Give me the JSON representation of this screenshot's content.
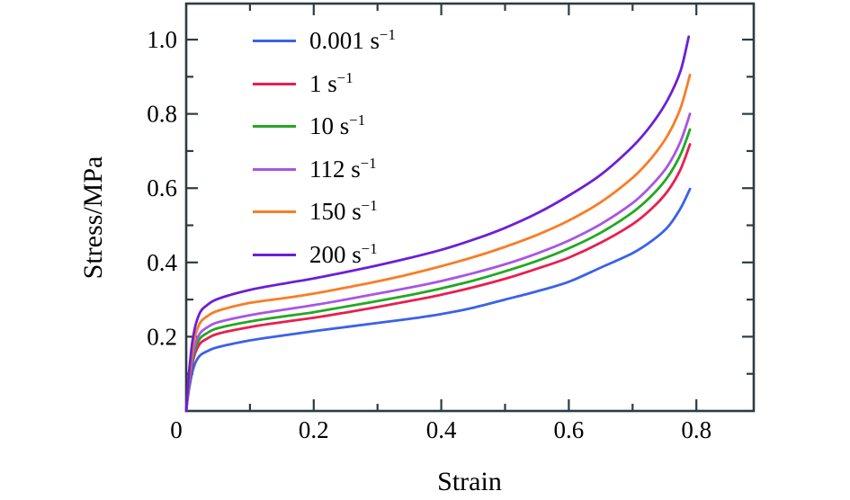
{
  "figure": {
    "background": "#ffffff",
    "axis_color": "#2e3b42",
    "text_color": "#000000"
  },
  "chart_data": {
    "type": "line",
    "title": "",
    "xlabel": "Strain",
    "ylabel": "Stress/MPa",
    "xlim": [
      0,
      0.89
    ],
    "ylim": [
      0,
      1.097
    ],
    "grid": false,
    "legend_position": "upper-left-inside",
    "x_major_ticks": [
      0.2,
      0.4,
      0.6,
      0.8
    ],
    "x_minor_ticks": [
      0.1,
      0.3,
      0.5,
      0.7
    ],
    "y_major_ticks": [
      0.2,
      0.4,
      0.6,
      0.8,
      1.0
    ],
    "y_minor_ticks": [
      0.1,
      0.3,
      0.5,
      0.7,
      0.9
    ],
    "x_tick_labels": [
      "0.2",
      "0.4",
      "0.6",
      "0.8"
    ],
    "y_tick_labels": [
      "0.2",
      "0.4",
      "0.6",
      "0.8",
      "1.0"
    ],
    "origin_label": "0",
    "series": [
      {
        "name": "0.001 s⁻¹",
        "legend_text": "0.001 s",
        "legend_sup": "−1",
        "color": "#3a62e9",
        "points": [
          [
            0,
            0
          ],
          [
            0.003,
            0.041
          ],
          [
            0.006,
            0.074
          ],
          [
            0.01,
            0.107
          ],
          [
            0.015,
            0.132
          ],
          [
            0.022,
            0.15
          ],
          [
            0.032,
            0.16
          ],
          [
            0.05,
            0.172
          ],
          [
            0.1,
            0.19
          ],
          [
            0.15,
            0.203
          ],
          [
            0.2,
            0.215
          ],
          [
            0.25,
            0.226
          ],
          [
            0.3,
            0.237
          ],
          [
            0.35,
            0.248
          ],
          [
            0.4,
            0.261
          ],
          [
            0.45,
            0.278
          ],
          [
            0.5,
            0.3
          ],
          [
            0.55,
            0.322
          ],
          [
            0.6,
            0.348
          ],
          [
            0.65,
            0.386
          ],
          [
            0.7,
            0.425
          ],
          [
            0.73,
            0.458
          ],
          [
            0.755,
            0.495
          ],
          [
            0.775,
            0.545
          ],
          [
            0.79,
            0.598
          ]
        ]
      },
      {
        "name": "1 s⁻¹",
        "legend_text": "1 s",
        "legend_sup": "−1",
        "color": "#e91e4f",
        "points": [
          [
            0,
            0
          ],
          [
            0.003,
            0.05
          ],
          [
            0.006,
            0.09
          ],
          [
            0.01,
            0.13
          ],
          [
            0.015,
            0.16
          ],
          [
            0.022,
            0.182
          ],
          [
            0.032,
            0.194
          ],
          [
            0.05,
            0.208
          ],
          [
            0.1,
            0.226
          ],
          [
            0.15,
            0.239
          ],
          [
            0.2,
            0.251
          ],
          [
            0.25,
            0.265
          ],
          [
            0.3,
            0.28
          ],
          [
            0.35,
            0.296
          ],
          [
            0.4,
            0.313
          ],
          [
            0.45,
            0.333
          ],
          [
            0.5,
            0.356
          ],
          [
            0.55,
            0.383
          ],
          [
            0.6,
            0.413
          ],
          [
            0.65,
            0.453
          ],
          [
            0.7,
            0.503
          ],
          [
            0.73,
            0.545
          ],
          [
            0.755,
            0.592
          ],
          [
            0.775,
            0.65
          ],
          [
            0.79,
            0.718
          ]
        ]
      },
      {
        "name": "10 s⁻¹",
        "legend_text": "10 s",
        "legend_sup": "−1",
        "color": "#22a822",
        "points": [
          [
            0,
            0
          ],
          [
            0.003,
            0.054
          ],
          [
            0.006,
            0.097
          ],
          [
            0.01,
            0.14
          ],
          [
            0.015,
            0.172
          ],
          [
            0.022,
            0.196
          ],
          [
            0.032,
            0.209
          ],
          [
            0.05,
            0.223
          ],
          [
            0.1,
            0.241
          ],
          [
            0.15,
            0.254
          ],
          [
            0.2,
            0.266
          ],
          [
            0.25,
            0.281
          ],
          [
            0.3,
            0.296
          ],
          [
            0.35,
            0.312
          ],
          [
            0.4,
            0.33
          ],
          [
            0.45,
            0.351
          ],
          [
            0.5,
            0.376
          ],
          [
            0.55,
            0.404
          ],
          [
            0.6,
            0.438
          ],
          [
            0.65,
            0.48
          ],
          [
            0.7,
            0.535
          ],
          [
            0.73,
            0.58
          ],
          [
            0.755,
            0.63
          ],
          [
            0.775,
            0.69
          ],
          [
            0.79,
            0.758
          ]
        ]
      },
      {
        "name": "112 s⁻¹",
        "legend_text": "112 s",
        "legend_sup": "−1",
        "color": "#a855e6",
        "points": [
          [
            0,
            0
          ],
          [
            0.003,
            0.058
          ],
          [
            0.006,
            0.104
          ],
          [
            0.01,
            0.15
          ],
          [
            0.015,
            0.184
          ],
          [
            0.022,
            0.21
          ],
          [
            0.032,
            0.224
          ],
          [
            0.05,
            0.239
          ],
          [
            0.1,
            0.258
          ],
          [
            0.15,
            0.272
          ],
          [
            0.2,
            0.285
          ],
          [
            0.25,
            0.3
          ],
          [
            0.3,
            0.316
          ],
          [
            0.35,
            0.332
          ],
          [
            0.4,
            0.35
          ],
          [
            0.45,
            0.371
          ],
          [
            0.5,
            0.395
          ],
          [
            0.55,
            0.424
          ],
          [
            0.6,
            0.459
          ],
          [
            0.65,
            0.503
          ],
          [
            0.7,
            0.56
          ],
          [
            0.73,
            0.608
          ],
          [
            0.755,
            0.66
          ],
          [
            0.775,
            0.725
          ],
          [
            0.79,
            0.8
          ]
        ]
      },
      {
        "name": "150 s⁻¹",
        "legend_text": "150 s",
        "legend_sup": "−1",
        "color": "#f87d26",
        "points": [
          [
            0,
            0
          ],
          [
            0.003,
            0.065
          ],
          [
            0.006,
            0.118
          ],
          [
            0.01,
            0.17
          ],
          [
            0.015,
            0.208
          ],
          [
            0.022,
            0.238
          ],
          [
            0.032,
            0.254
          ],
          [
            0.05,
            0.27
          ],
          [
            0.1,
            0.291
          ],
          [
            0.15,
            0.303
          ],
          [
            0.2,
            0.316
          ],
          [
            0.25,
            0.332
          ],
          [
            0.3,
            0.349
          ],
          [
            0.35,
            0.368
          ],
          [
            0.4,
            0.39
          ],
          [
            0.45,
            0.414
          ],
          [
            0.5,
            0.442
          ],
          [
            0.55,
            0.474
          ],
          [
            0.6,
            0.513
          ],
          [
            0.65,
            0.562
          ],
          [
            0.7,
            0.628
          ],
          [
            0.73,
            0.682
          ],
          [
            0.755,
            0.742
          ],
          [
            0.775,
            0.815
          ],
          [
            0.79,
            0.905
          ]
        ]
      },
      {
        "name": "200 s⁻¹",
        "legend_text": "200 s",
        "legend_sup": "−1",
        "color": "#6c1fd6",
        "points": [
          [
            0,
            0
          ],
          [
            0.003,
            0.073
          ],
          [
            0.006,
            0.132
          ],
          [
            0.01,
            0.19
          ],
          [
            0.015,
            0.233
          ],
          [
            0.022,
            0.266
          ],
          [
            0.032,
            0.284
          ],
          [
            0.05,
            0.302
          ],
          [
            0.1,
            0.326
          ],
          [
            0.15,
            0.342
          ],
          [
            0.2,
            0.357
          ],
          [
            0.25,
            0.374
          ],
          [
            0.3,
            0.392
          ],
          [
            0.35,
            0.412
          ],
          [
            0.4,
            0.434
          ],
          [
            0.45,
            0.461
          ],
          [
            0.5,
            0.493
          ],
          [
            0.55,
            0.532
          ],
          [
            0.6,
            0.58
          ],
          [
            0.65,
            0.636
          ],
          [
            0.7,
            0.712
          ],
          [
            0.73,
            0.772
          ],
          [
            0.755,
            0.838
          ],
          [
            0.775,
            0.915
          ],
          [
            0.788,
            1.008
          ]
        ]
      }
    ]
  }
}
